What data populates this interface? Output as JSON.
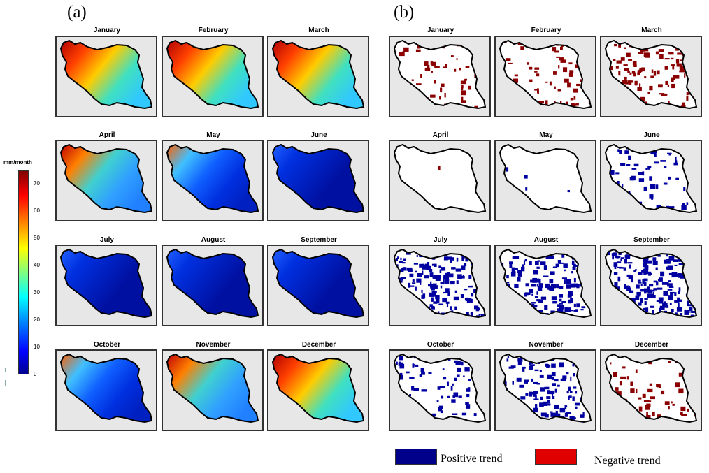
{
  "panels": {
    "a_label": "(a)",
    "b_label": "(b)"
  },
  "months": [
    "January",
    "February",
    "March",
    "April",
    "May",
    "June",
    "July",
    "August",
    "September",
    "October",
    "November",
    "December"
  ],
  "colorbar": {
    "unit": "mm/month",
    "ticks": [
      "70",
      "60",
      "50",
      "40",
      "30",
      "20",
      "10",
      "0"
    ],
    "range": [
      0,
      75
    ],
    "colormap": "jet"
  },
  "legend": {
    "positive_label": "Positive trend",
    "negative_label": "Negative trend",
    "positive_color": "#00008b",
    "negative_color": "#e00000"
  },
  "colors": {
    "panel_background": "#e7e7e7",
    "country_outline": "#000000",
    "trend_positive": "#0000a0",
    "trend_negative": "#8b0000"
  },
  "panel_a_levels": {
    "January": "high",
    "February": "high",
    "March": "high",
    "April": "mid",
    "May": "low-mid",
    "June": "low",
    "July": "low",
    "August": "low",
    "September": "low",
    "October": "low-mid",
    "November": "mid",
    "December": "high"
  },
  "panel_b_trends": {
    "January": "negative",
    "February": "negative",
    "March": "negative",
    "April": "negative",
    "May": "positive",
    "June": "positive",
    "July": "positive",
    "August": "positive",
    "September": "positive",
    "October": "positive",
    "November": "positive",
    "December": "negative"
  }
}
